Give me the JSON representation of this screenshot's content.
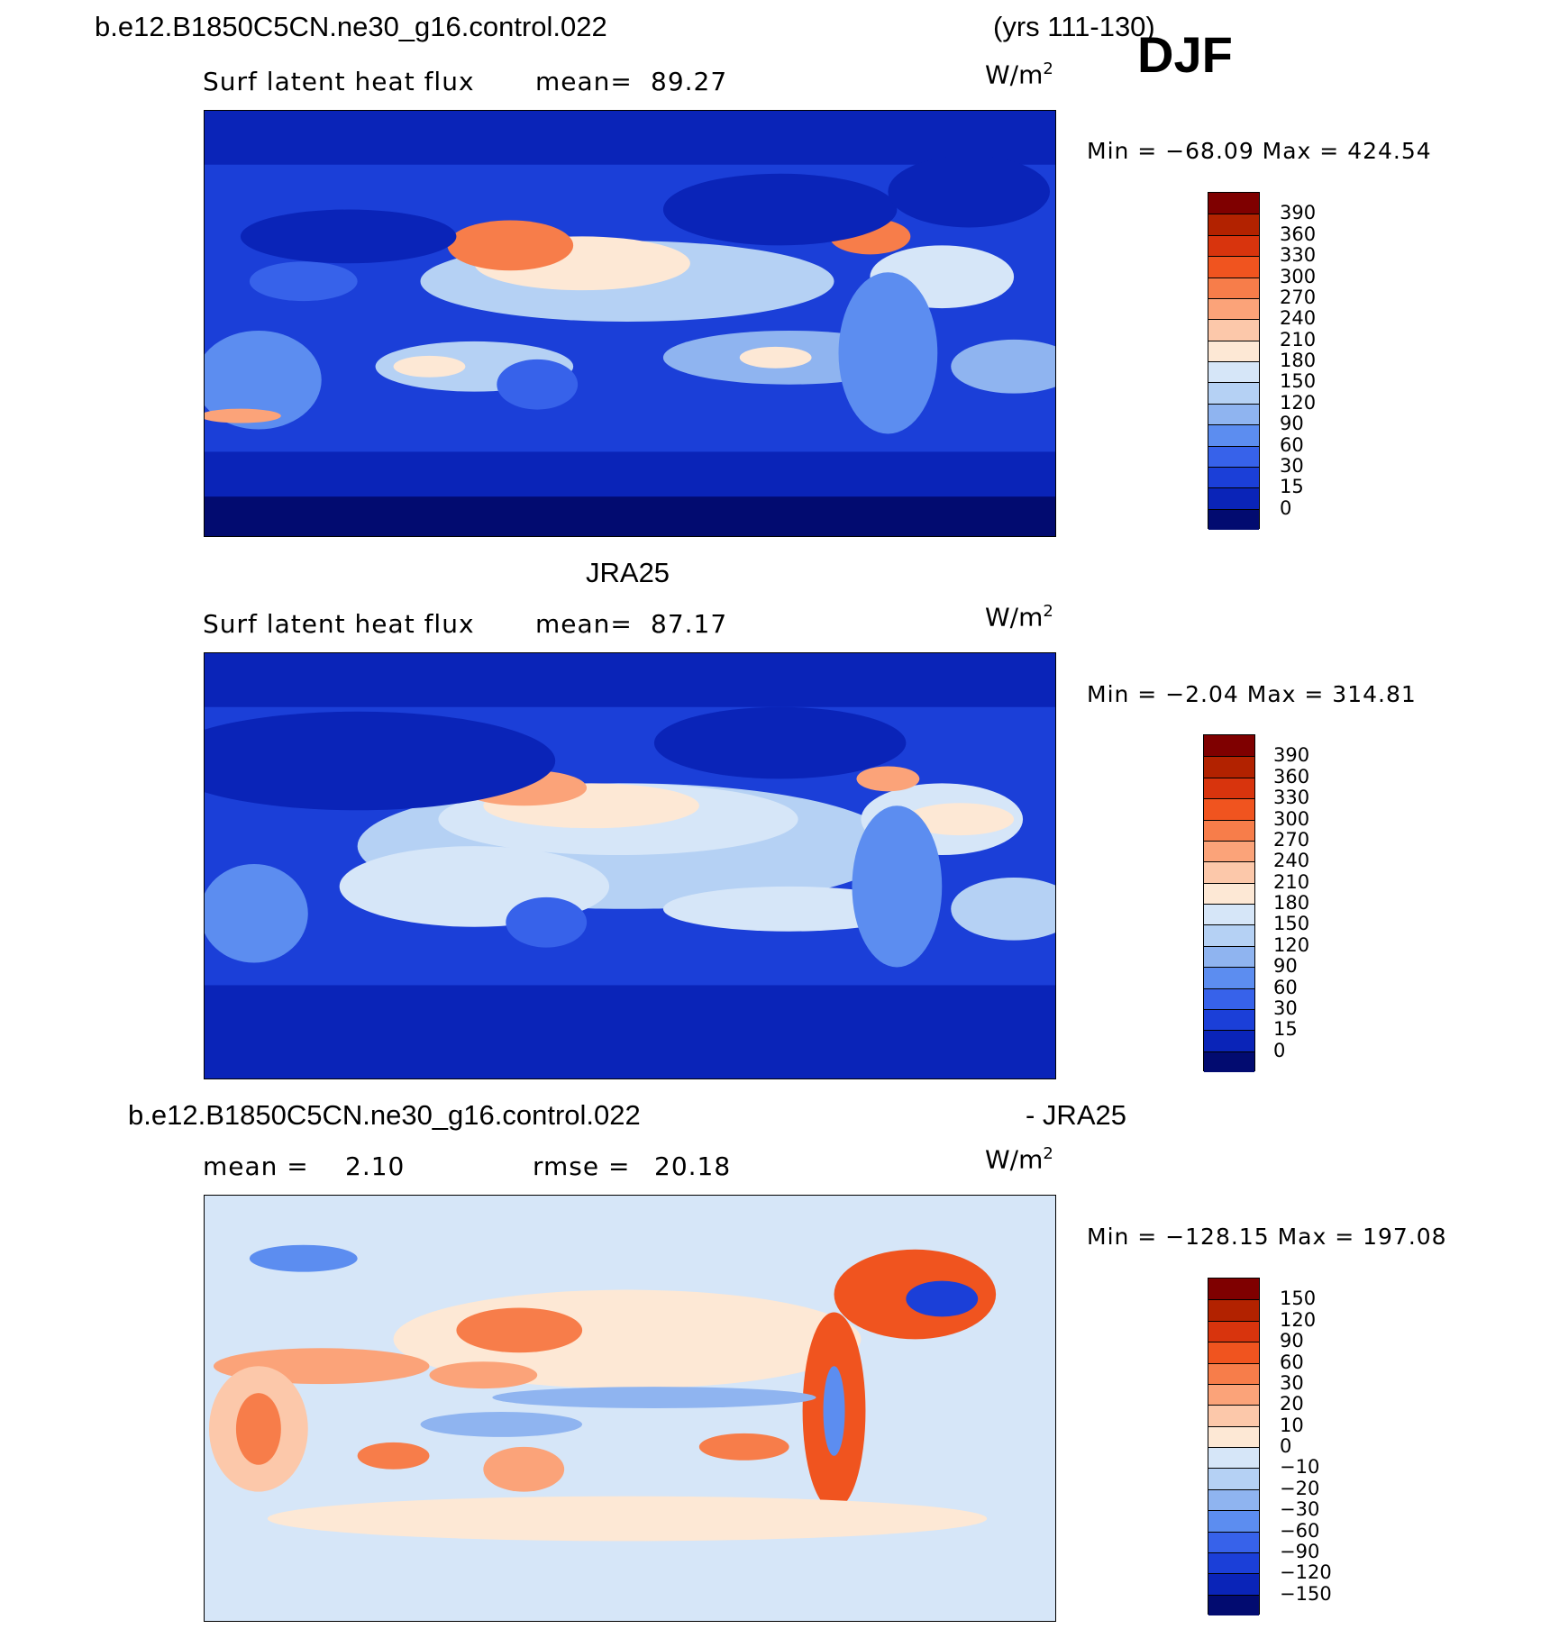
{
  "header": {
    "case_name": "b.e12.B1850C5CN.ne30_g16.control.022",
    "years": "(yrs 111-130)",
    "season": "DJF"
  },
  "panels": [
    {
      "id": "model",
      "heading": "",
      "left_label": "Surf latent heat flux",
      "stat_label": "mean=",
      "stat_value": "89.27",
      "units": "W/m",
      "units_sup": "2",
      "min_max": "Min = −68.09 Max = 424.54",
      "colorbar_labels": [
        "390",
        "360",
        "330",
        "300",
        "270",
        "240",
        "210",
        "180",
        "150",
        "120",
        "90",
        "60",
        "30",
        "15",
        "0"
      ],
      "colorbar_colors": [
        "#7f0000",
        "#b22200",
        "#d8340d",
        "#f0541f",
        "#f77d4a",
        "#fba379",
        "#fcc8aa",
        "#fde8d5",
        "#d6e6f8",
        "#b5d1f4",
        "#8fb4f0",
        "#5c8df0",
        "#3762ea",
        "#1b3fd8",
        "#0a24b8",
        "#020b70"
      ]
    },
    {
      "id": "obs",
      "heading": "JRA25",
      "left_label": "Surf latent heat flux",
      "stat_label": "mean=",
      "stat_value": "87.17",
      "units": "W/m",
      "units_sup": "2",
      "min_max": "Min =  −2.04 Max = 314.81",
      "colorbar_labels": [
        "390",
        "360",
        "330",
        "300",
        "270",
        "240",
        "210",
        "180",
        "150",
        "120",
        "90",
        "60",
        "30",
        "15",
        "0"
      ],
      "colorbar_colors": [
        "#7f0000",
        "#b22200",
        "#d8340d",
        "#f0541f",
        "#f77d4a",
        "#fba379",
        "#fcc8aa",
        "#fde8d5",
        "#d6e6f8",
        "#b5d1f4",
        "#8fb4f0",
        "#5c8df0",
        "#3762ea",
        "#1b3fd8",
        "#0a24b8",
        "#020b70"
      ]
    },
    {
      "id": "diff",
      "heading_left": "b.e12.B1850C5CN.ne30_g16.control.022",
      "heading_right": "- JRA25",
      "left_label": "mean =",
      "left_value": "2.10",
      "stat_label": "rmse =",
      "stat_value": "20.18",
      "units": "W/m",
      "units_sup": "2",
      "min_max": "Min = −128.15 Max = 197.08",
      "colorbar_labels": [
        "150",
        "120",
        "90",
        "60",
        "30",
        "20",
        "10",
        "0",
        "−10",
        "−20",
        "−30",
        "−60",
        "−90",
        "−120",
        "−150"
      ],
      "colorbar_colors": [
        "#7f0000",
        "#b22200",
        "#d8340d",
        "#f0541f",
        "#f77d4a",
        "#fba379",
        "#fcc8aa",
        "#fde8d5",
        "#d6e6f8",
        "#b5d1f4",
        "#8fb4f0",
        "#5c8df0",
        "#3762ea",
        "#1b3fd8",
        "#0a24b8",
        "#020b70"
      ]
    }
  ]
}
